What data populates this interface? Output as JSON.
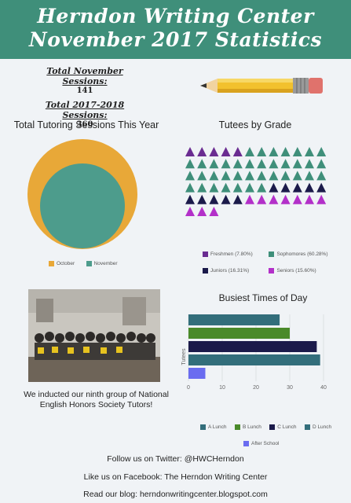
{
  "header": {
    "title_line1": "Herndon Writing Center",
    "title_line2": "November 2017 Statistics",
    "bg_color": "#3f8f7a"
  },
  "totals": {
    "november_label": "Total November Sessions:",
    "november_value": "141",
    "year_label": "Total 2017-2018 Sessions:",
    "year_value": "360"
  },
  "decoration": {
    "pencil_icon": "pencil-icon"
  },
  "chart_data": [
    {
      "type": "area",
      "title": "Total Tutoring Sessions This Year",
      "categories": [
        "October",
        "November"
      ],
      "values": [
        219,
        141
      ],
      "colors": [
        "#e8a838",
        "#4d9c8c"
      ],
      "legend_position": "bottom"
    },
    {
      "type": "pictograph",
      "title": "Tutees by Grade",
      "categories": [
        "Freshmen",
        "Sophomores",
        "Juniors",
        "Seniors"
      ],
      "values": [
        7.8,
        60.28,
        16.31,
        15.6
      ],
      "legend_labels": [
        "Freshmen (7.80%)",
        "Sophomores (60.28%)",
        "Juniors (16.31%)",
        "Seniors (15.60%)"
      ],
      "colors": [
        "#6a2c91",
        "#3f8f7a",
        "#1b1a4a",
        "#b330c9"
      ],
      "legend_position": "bottom"
    },
    {
      "type": "bar",
      "orientation": "horizontal",
      "title": "Busiest Times of Day",
      "ylabel": "Tutees",
      "categories": [
        "A Lunch",
        "B Lunch",
        "C Lunch",
        "D Lunch",
        "After School"
      ],
      "values": [
        27,
        30,
        38,
        39,
        5
      ],
      "colors": [
        "#336e7b",
        "#4a8a2a",
        "#1b1a4a",
        "#336e7b",
        "#6a6cf0"
      ],
      "xlim": [
        0,
        40
      ],
      "xticks": [
        "0",
        "10",
        "20",
        "30",
        "40"
      ],
      "legend_position": "bottom"
    }
  ],
  "photo": {
    "caption": "We inducted our ninth group of National English Honors Society Tutors!"
  },
  "footer": {
    "twitter": "Follow us on Twitter: @HWCHerndon",
    "facebook": "Like us on Facebook: The Herndon Writing Center",
    "blog": "Read our blog: herndonwritingcenter.blogspot.com"
  }
}
